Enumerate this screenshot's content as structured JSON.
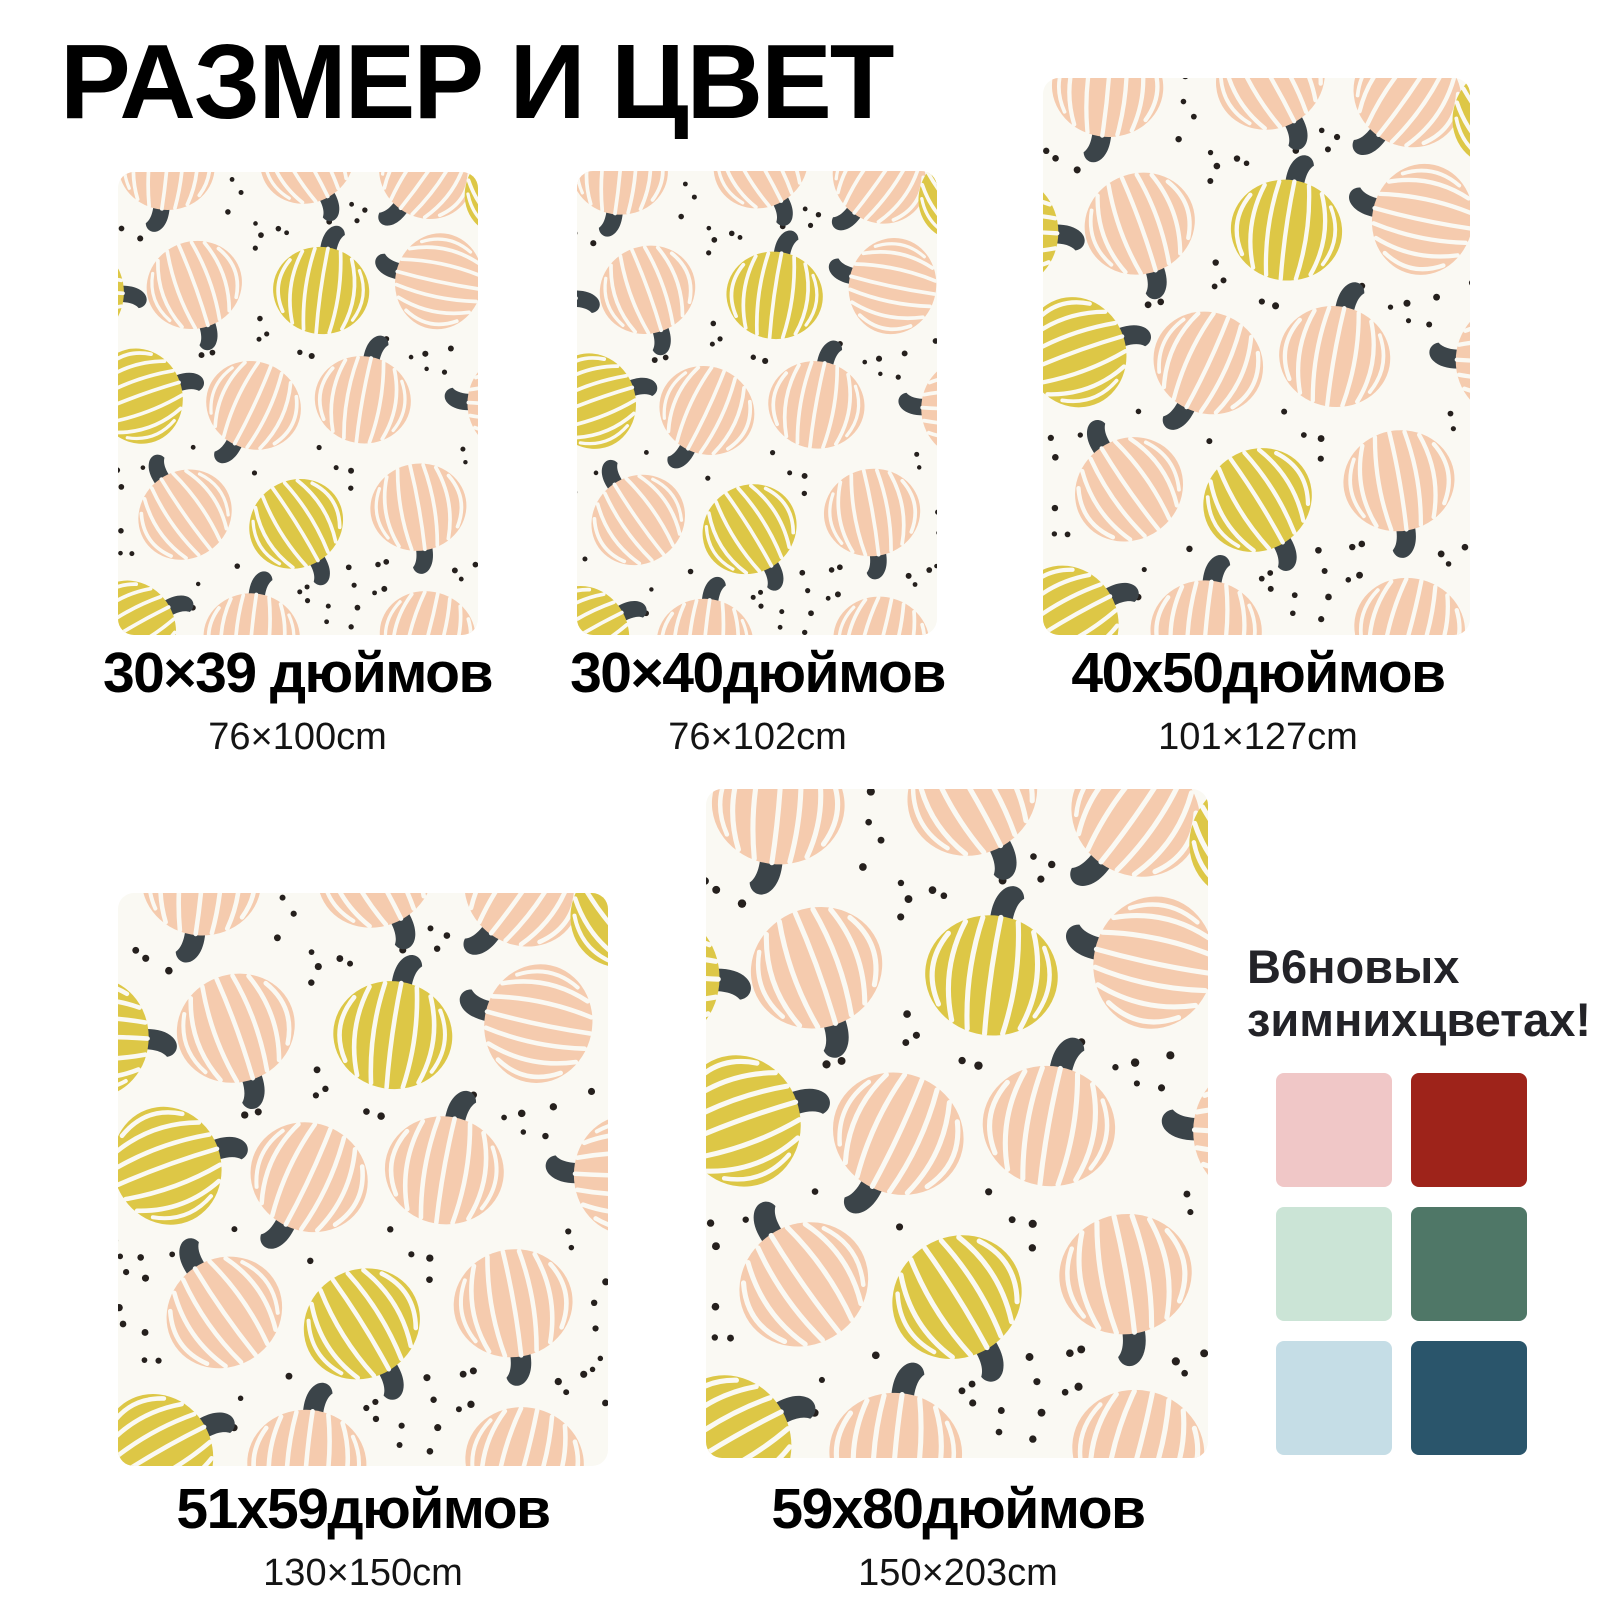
{
  "title": "РАЗМЕР И ЦВЕТ",
  "sizes": [
    {
      "inches": "30×39 дюймов",
      "cm": "76×100cm"
    },
    {
      "inches": "30×40дюймов",
      "cm": "76×102cm"
    },
    {
      "inches": "40x50дюймов",
      "cm": "101×127cm"
    },
    {
      "inches": "51x59дюймов",
      "cm": "130×150cm"
    },
    {
      "inches": "59x80дюймов",
      "cm": "150×203cm"
    }
  ],
  "colors_section": {
    "heading_line1": "В6новых",
    "heading_line2": "зимнихцветах!",
    "swatches": [
      {
        "name": "pink",
        "hex": "#f0c7c7"
      },
      {
        "name": "dark-red",
        "hex": "#9e231a"
      },
      {
        "name": "mint",
        "hex": "#cbe4d6"
      },
      {
        "name": "green",
        "hex": "#4f7767"
      },
      {
        "name": "light-blue",
        "hex": "#c5dde6"
      },
      {
        "name": "navy-teal",
        "hex": "#2a556b"
      }
    ]
  },
  "pattern": {
    "background": "#faf9f3",
    "dot": "#25201d",
    "peach": "#f5cbae",
    "yellow": "#ddc746",
    "stem": "#3b4449",
    "rib": "#faf9f3"
  }
}
